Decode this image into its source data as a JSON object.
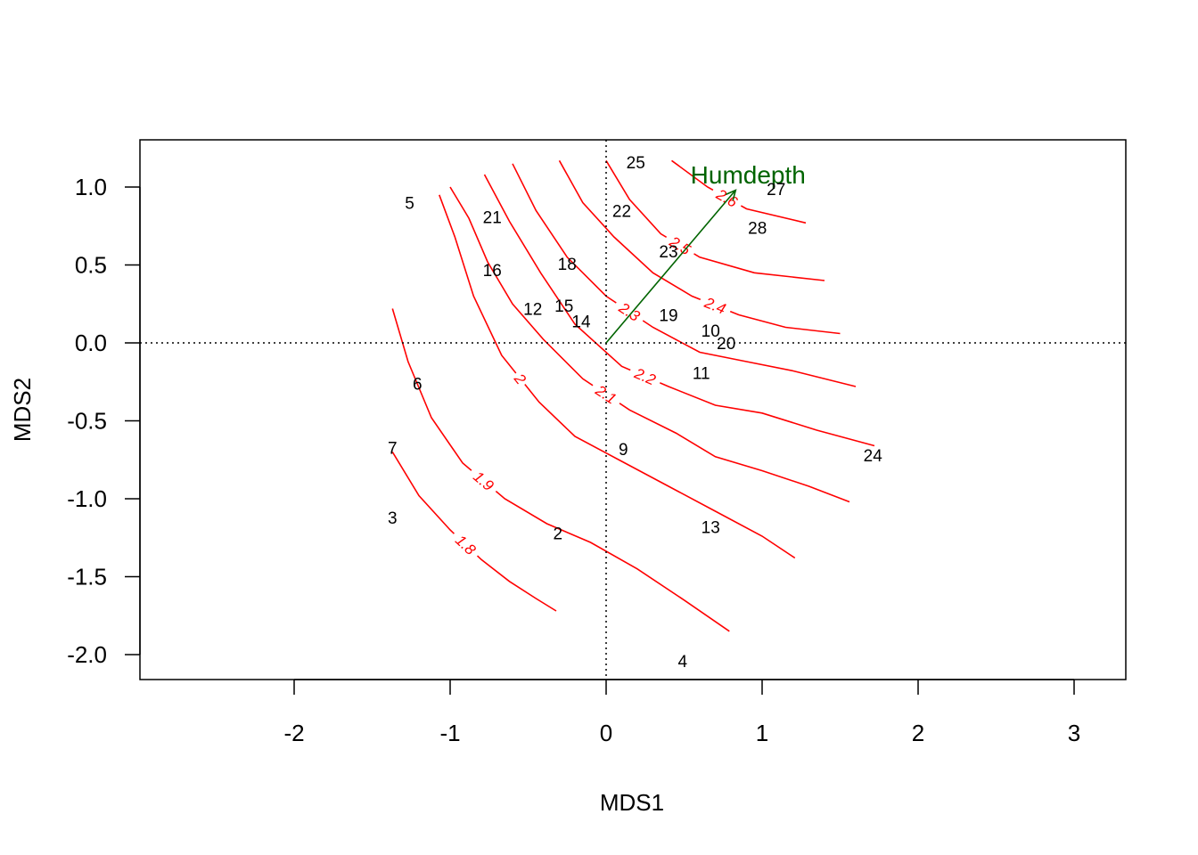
{
  "chart_data": {
    "type": "scatter",
    "title": "",
    "xlabel": "MDS1",
    "ylabel": "MDS2",
    "xlim": [
      -3,
      3.35
    ],
    "ylim": [
      -2.15,
      1.3
    ],
    "xticks": [
      -2,
      -1,
      0,
      1,
      2,
      3
    ],
    "yticks": [
      -2.0,
      -1.5,
      -1.0,
      -0.5,
      0.0,
      0.5,
      1.0
    ],
    "xtick_labels": [
      "-2",
      "-1",
      "0",
      "1",
      "2",
      "3"
    ],
    "ytick_labels": [
      "-2.0",
      "-1.5",
      "-1.0",
      "-0.5",
      "0.0",
      "0.5",
      "1.0"
    ],
    "grid": false,
    "reference_lines": {
      "x": 0,
      "y": 0,
      "style": "dotted"
    },
    "points": [
      {
        "label": "2",
        "x": -0.31,
        "y": -1.22
      },
      {
        "label": "3",
        "x": -1.37,
        "y": -1.12
      },
      {
        "label": "4",
        "x": 0.49,
        "y": -2.04
      },
      {
        "label": "5",
        "x": -1.26,
        "y": 0.9
      },
      {
        "label": "6",
        "x": -1.21,
        "y": -0.26
      },
      {
        "label": "7",
        "x": -1.37,
        "y": -0.67
      },
      {
        "label": "9",
        "x": 0.11,
        "y": -0.68
      },
      {
        "label": "10",
        "x": 0.67,
        "y": 0.08
      },
      {
        "label": "11",
        "x": 0.61,
        "y": -0.19
      },
      {
        "label": "12",
        "x": -0.47,
        "y": 0.22
      },
      {
        "label": "13",
        "x": 0.67,
        "y": -1.18
      },
      {
        "label": "14",
        "x": -0.16,
        "y": 0.14
      },
      {
        "label": "15",
        "x": -0.27,
        "y": 0.24
      },
      {
        "label": "16",
        "x": -0.73,
        "y": 0.47
      },
      {
        "label": "18",
        "x": -0.25,
        "y": 0.51
      },
      {
        "label": "19",
        "x": 0.4,
        "y": 0.18
      },
      {
        "label": "20",
        "x": 0.77,
        "y": 0.0
      },
      {
        "label": "21",
        "x": -0.73,
        "y": 0.81
      },
      {
        "label": "22",
        "x": 0.1,
        "y": 0.85
      },
      {
        "label": "23",
        "x": 0.4,
        "y": 0.59
      },
      {
        "label": "24",
        "x": 1.71,
        "y": -0.72
      },
      {
        "label": "25",
        "x": 0.19,
        "y": 1.16
      },
      {
        "label": "27",
        "x": 1.09,
        "y": 0.99
      },
      {
        "label": "28",
        "x": 0.97,
        "y": 0.74
      }
    ],
    "vectors": [
      {
        "name": "Humdepth",
        "x": 0.83,
        "y": 0.98,
        "label_x": 0.91,
        "label_y": 1.08,
        "color": "#006400"
      }
    ],
    "contours": [
      {
        "level": "1.8",
        "color": "#ff0000",
        "label_at": 3,
        "points": [
          [
            -1.37,
            -0.7
          ],
          [
            -1.2,
            -0.98
          ],
          [
            -1.0,
            -1.2
          ],
          [
            -0.8,
            -1.39
          ],
          [
            -0.62,
            -1.53
          ],
          [
            -0.45,
            -1.64
          ],
          [
            -0.32,
            -1.72
          ]
        ]
      },
      {
        "level": "1.9",
        "color": "#ff0000",
        "label_at": 4,
        "points": [
          [
            -1.37,
            0.22
          ],
          [
            -1.27,
            -0.12
          ],
          [
            -1.12,
            -0.48
          ],
          [
            -0.92,
            -0.77
          ],
          [
            -0.65,
            -1.0
          ],
          [
            -0.38,
            -1.16
          ],
          [
            -0.1,
            -1.28
          ],
          [
            0.2,
            -1.45
          ],
          [
            0.5,
            -1.65
          ],
          [
            0.79,
            -1.85
          ]
        ]
      },
      {
        "level": "2",
        "color": "#ff0000",
        "label_at": 4,
        "points": [
          [
            -1.07,
            0.95
          ],
          [
            -0.97,
            0.68
          ],
          [
            -0.85,
            0.3
          ],
          [
            -0.67,
            -0.08
          ],
          [
            -0.43,
            -0.38
          ],
          [
            -0.2,
            -0.6
          ],
          [
            0.1,
            -0.76
          ],
          [
            0.4,
            -0.92
          ],
          [
            0.7,
            -1.08
          ],
          [
            1.0,
            -1.24
          ],
          [
            1.21,
            -1.38
          ]
        ]
      },
      {
        "level": "2.1",
        "color": "#ff0000",
        "label_at": 6,
        "points": [
          [
            -1.0,
            1.0
          ],
          [
            -0.88,
            0.8
          ],
          [
            -0.76,
            0.52
          ],
          [
            -0.6,
            0.25
          ],
          [
            -0.4,
            0.02
          ],
          [
            -0.15,
            -0.23
          ],
          [
            0.15,
            -0.43
          ],
          [
            0.45,
            -0.58
          ],
          [
            0.7,
            -0.73
          ],
          [
            1.0,
            -0.82
          ],
          [
            1.3,
            -0.92
          ],
          [
            1.56,
            -1.02
          ]
        ]
      },
      {
        "level": "2.2",
        "color": "#ff0000",
        "label_at": 5,
        "points": [
          [
            -0.78,
            1.08
          ],
          [
            -0.62,
            0.78
          ],
          [
            -0.42,
            0.45
          ],
          [
            -0.2,
            0.12
          ],
          [
            0.1,
            -0.15
          ],
          [
            0.4,
            -0.28
          ],
          [
            0.7,
            -0.4
          ],
          [
            1.0,
            -0.45
          ],
          [
            1.35,
            -0.56
          ],
          [
            1.72,
            -0.66
          ]
        ]
      },
      {
        "level": "2.3",
        "color": "#ff0000",
        "label_at": 4,
        "points": [
          [
            -0.6,
            1.15
          ],
          [
            -0.45,
            0.85
          ],
          [
            -0.25,
            0.55
          ],
          [
            0.0,
            0.3
          ],
          [
            0.3,
            0.1
          ],
          [
            0.6,
            -0.06
          ],
          [
            0.9,
            -0.12
          ],
          [
            1.2,
            -0.18
          ],
          [
            1.6,
            -0.28
          ]
        ]
      },
      {
        "level": "2.4",
        "color": "#ff0000",
        "label_at": 5,
        "points": [
          [
            -0.3,
            1.17
          ],
          [
            -0.15,
            0.9
          ],
          [
            0.05,
            0.68
          ],
          [
            0.3,
            0.45
          ],
          [
            0.55,
            0.3
          ],
          [
            0.85,
            0.18
          ],
          [
            1.15,
            0.1
          ],
          [
            1.5,
            0.06
          ]
        ]
      },
      {
        "level": "2.5",
        "color": "#ff0000",
        "label_at": 3,
        "points": [
          [
            0.0,
            1.17
          ],
          [
            0.15,
            0.92
          ],
          [
            0.35,
            0.7
          ],
          [
            0.6,
            0.55
          ],
          [
            0.95,
            0.45
          ],
          [
            1.4,
            0.4
          ]
        ]
      },
      {
        "level": "2.6",
        "color": "#ff0000",
        "label_at": 2,
        "points": [
          [
            0.42,
            1.17
          ],
          [
            0.65,
            1.0
          ],
          [
            0.9,
            0.86
          ],
          [
            1.28,
            0.77
          ]
        ]
      }
    ]
  }
}
